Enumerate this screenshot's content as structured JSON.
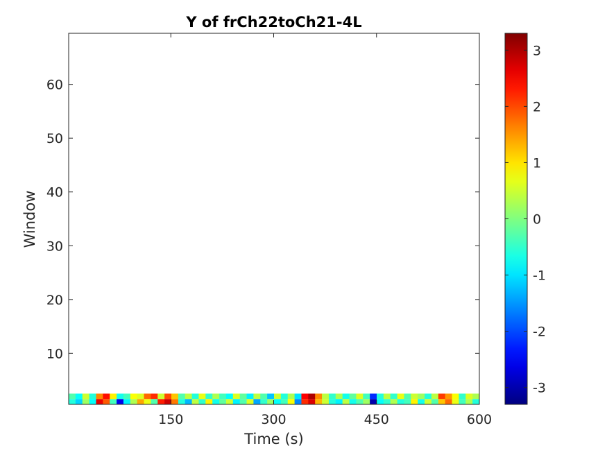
{
  "chart_data": {
    "type": "heatmap",
    "title": "Y of frCh22toCh21-4L",
    "xlabel": "Time (s)",
    "ylabel": "Window",
    "xlim": [
      1,
      600
    ],
    "ylim": [
      0.5,
      69.5
    ],
    "xticks": [
      150,
      300,
      450,
      600
    ],
    "yticks": [
      10,
      20,
      30,
      40,
      50,
      60
    ],
    "colormap": "jet",
    "clim": [
      -3.3,
      3.3
    ],
    "colorbar_ticks": [
      3,
      2,
      1,
      0,
      -1,
      -2,
      -3
    ],
    "grid": false,
    "n_columns": 60,
    "rows": [
      {
        "window": 1,
        "values": [
          -0.6,
          -1.1,
          0.2,
          -0.8,
          2.6,
          1.9,
          -0.4,
          -2.6,
          -0.9,
          0.3,
          1.4,
          0.7,
          -0.3,
          2.3,
          2.8,
          1.7,
          -0.6,
          -1.3,
          0.4,
          -0.5,
          0.9,
          -0.7,
          -0.2,
          0.5,
          -0.9,
          -0.3,
          0.6,
          -1.4,
          -0.5,
          0.2,
          -0.8,
          -0.4,
          0.8,
          -1.6,
          2.2,
          2.7,
          1.3,
          0.5,
          -0.6,
          -0.9,
          0.4,
          -0.7,
          -0.3,
          0.2,
          -3.0,
          -0.8,
          -0.5,
          0.3,
          -0.6,
          -0.4,
          0.9,
          -0.7,
          0.5,
          -0.3,
          1.2,
          1.8,
          0.7,
          -0.4,
          0.3,
          -0.6
        ]
      },
      {
        "window": 2,
        "values": [
          -0.3,
          -0.8,
          0.5,
          -0.6,
          1.6,
          2.4,
          0.9,
          -0.7,
          -0.4,
          0.8,
          0.6,
          1.8,
          2.2,
          0.5,
          2.0,
          1.2,
          -0.3,
          0.4,
          -0.6,
          0.7,
          -0.5,
          0.3,
          -0.4,
          -0.8,
          0.6,
          -0.2,
          -0.9,
          0.4,
          -0.3,
          -1.2,
          0.5,
          -0.6,
          0.3,
          -1.0,
          2.5,
          3.0,
          1.6,
          0.4,
          -0.5,
          0.3,
          -0.7,
          -0.2,
          0.6,
          -0.4,
          -2.2,
          -0.6,
          0.4,
          -0.5,
          0.7,
          -0.3,
          0.5,
          0.2,
          -0.6,
          0.4,
          2.1,
          1.5,
          0.8,
          -0.5,
          0.6,
          0.3
        ]
      }
    ]
  }
}
